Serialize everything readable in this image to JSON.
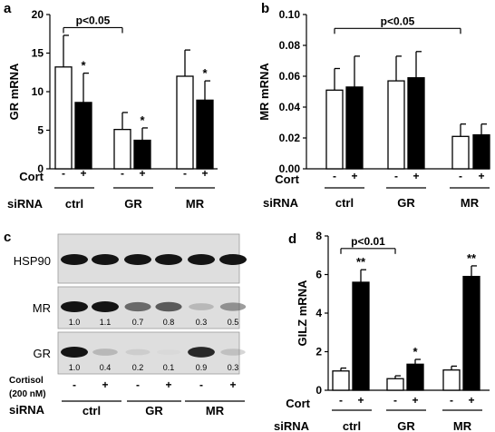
{
  "panels": {
    "a": {
      "letter": "a",
      "chart_data": {
        "type": "bar",
        "ylabel": "GR mRNA",
        "ylim": [
          0,
          20
        ],
        "yticks": [
          "0",
          "5",
          "10",
          "15",
          "20"
        ],
        "groups": [
          "ctrl",
          "GR",
          "MR"
        ],
        "cort_labels": [
          "-",
          "+",
          "-",
          "+",
          "-",
          "+"
        ],
        "row_label_cort": "Cort",
        "row_label_sirna": "siRNA",
        "values": [
          13.2,
          8.6,
          5.1,
          3.7,
          12.0,
          8.9
        ],
        "errors": [
          4.1,
          3.8,
          2.2,
          1.6,
          3.4,
          2.5
        ],
        "fills": [
          "#ffffff",
          "#000000",
          "#ffffff",
          "#000000",
          "#ffffff",
          "#000000"
        ],
        "stars": [
          "",
          "*",
          "",
          "*",
          "",
          "*"
        ],
        "bracket": {
          "label": "p<0.05",
          "from": 0,
          "to": 2,
          "y": 18.3
        }
      }
    },
    "b": {
      "letter": "b",
      "chart_data": {
        "type": "bar",
        "ylabel": "MR mRNA",
        "ylim": [
          0,
          0.1
        ],
        "yticks": [
          "0.00",
          "0.02",
          "0.04",
          "0.06",
          "0.08",
          "0.10"
        ],
        "groups": [
          "ctrl",
          "GR",
          "MR"
        ],
        "cort_labels": [
          "-",
          "+",
          "-",
          "+",
          "-",
          "+"
        ],
        "row_label_cort": "Cort",
        "row_label_sirna": "siRNA",
        "values": [
          0.051,
          0.053,
          0.057,
          0.059,
          0.021,
          0.022
        ],
        "errors": [
          0.014,
          0.02,
          0.016,
          0.017,
          0.008,
          0.007
        ],
        "fills": [
          "#ffffff",
          "#000000",
          "#ffffff",
          "#000000",
          "#ffffff",
          "#000000"
        ],
        "stars": [
          "",
          "",
          "",
          "",
          "",
          ""
        ],
        "bracket": {
          "label": "p<0.05",
          "from": 0,
          "to": 4,
          "y": 0.091
        }
      }
    },
    "c": {
      "letter": "c",
      "blots": [
        {
          "label": "HSP90",
          "numbers": [
            "",
            "",
            "",
            "",
            "",
            ""
          ],
          "intensity": [
            1.0,
            1.0,
            1.0,
            1.0,
            1.0,
            1.0
          ]
        },
        {
          "label": "MR",
          "numbers": [
            "1.0",
            "1.1",
            "0.7",
            "0.8",
            "0.3",
            "0.5"
          ],
          "intensity": [
            1.0,
            1.0,
            0.75,
            0.8,
            0.4,
            0.6
          ]
        },
        {
          "label": "GR",
          "numbers": [
            "1.0",
            "0.4",
            "0.2",
            "0.1",
            "0.9",
            "0.3"
          ],
          "intensity": [
            1.0,
            0.4,
            0.25,
            0.08,
            0.95,
            0.35
          ]
        }
      ],
      "cortisol_label_1": "Cortisol",
      "cortisol_label_2": "(200 nM)",
      "cort_labels": [
        "-",
        "+",
        "-",
        "+",
        "-",
        "+"
      ],
      "row_label_sirna": "siRNA",
      "groups": [
        "ctrl",
        "GR",
        "MR"
      ]
    },
    "d": {
      "letter": "d",
      "chart_data": {
        "type": "bar",
        "ylabel": "GILZ mRNA",
        "ylim": [
          0,
          8
        ],
        "yticks": [
          "0",
          "2",
          "4",
          "6",
          "8"
        ],
        "groups": [
          "ctrl",
          "GR",
          "MR"
        ],
        "cort_labels": [
          "-",
          "+",
          "-",
          "+",
          "-",
          "+"
        ],
        "row_label_cort": "Cort",
        "row_label_sirna": "siRNA",
        "values": [
          1.0,
          5.6,
          0.6,
          1.35,
          1.05,
          5.9
        ],
        "errors": [
          0.15,
          0.65,
          0.15,
          0.25,
          0.2,
          0.55
        ],
        "fills": [
          "#ffffff",
          "#000000",
          "#ffffff",
          "#000000",
          "#ffffff",
          "#000000"
        ],
        "stars": [
          "",
          "**",
          "",
          "*",
          "",
          "**"
        ],
        "bracket": {
          "label": "p<0.01",
          "from": 0,
          "to": 2,
          "y": 7.35
        }
      }
    }
  }
}
